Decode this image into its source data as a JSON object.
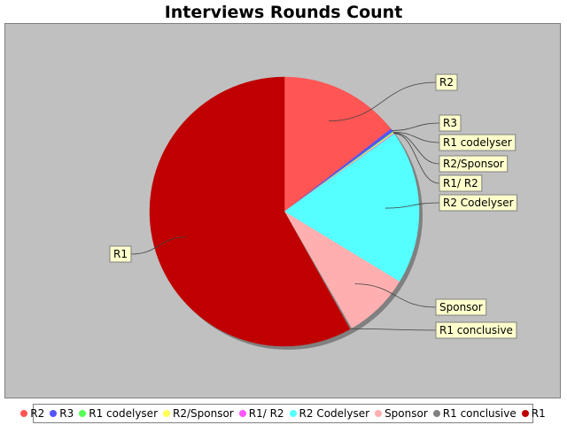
{
  "chart_data": {
    "type": "pie",
    "title": "Interviews Rounds Count",
    "slices": [
      {
        "label": "R2",
        "value": 14.5,
        "color": "#ff5555"
      },
      {
        "label": "R3",
        "value": 0.4,
        "color": "#5555ff"
      },
      {
        "label": "R1 codelyser",
        "value": 0.1,
        "color": "#55ff55"
      },
      {
        "label": "R2/Sponsor",
        "value": 0.1,
        "color": "#ffff55"
      },
      {
        "label": "R1/ R2",
        "value": 0.1,
        "color": "#ff55ff"
      },
      {
        "label": "R2 Codelyser",
        "value": 18.5,
        "color": "#55ffff"
      },
      {
        "label": "Sponsor",
        "value": 8.0,
        "color": "#ffafaf"
      },
      {
        "label": "R1 conclusive",
        "value": 0.2,
        "color": "#808080"
      },
      {
        "label": "R1",
        "value": 58.1,
        "color": "#c00000"
      }
    ],
    "legend_position": "bottom"
  }
}
